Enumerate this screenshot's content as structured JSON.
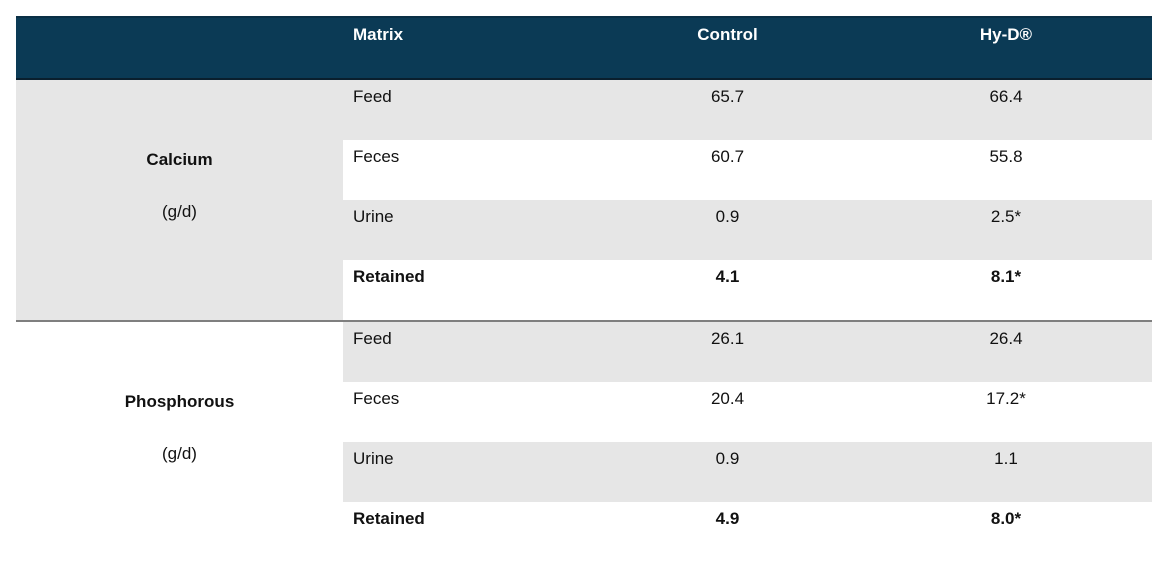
{
  "header": {
    "corner": "",
    "matrix": "Matrix",
    "control": "Control",
    "hyd": "Hy-D®"
  },
  "groups": [
    {
      "name": "Calcium",
      "unit": "(g/d)",
      "rows": [
        {
          "matrix": "Feed",
          "control": "65.7",
          "hyd": "66.4"
        },
        {
          "matrix": "Feces",
          "control": "60.7",
          "hyd": "55.8"
        },
        {
          "matrix": "Urine",
          "control": "0.9",
          "hyd": "2.5*"
        },
        {
          "matrix": "Retained",
          "control": "4.1",
          "hyd": "8.1*"
        }
      ]
    },
    {
      "name": "Phosphorous",
      "unit": "(g/d)",
      "rows": [
        {
          "matrix": "Feed",
          "control": "26.1",
          "hyd": "26.4"
        },
        {
          "matrix": "Feces",
          "control": "20.4",
          "hyd": "17.2*"
        },
        {
          "matrix": "Urine",
          "control": "0.9",
          "hyd": "1.1"
        },
        {
          "matrix": "Retained",
          "control": "4.9",
          "hyd": "8.0*"
        }
      ]
    }
  ],
  "colors": {
    "header_bg": "#0b3a55",
    "header_text": "#ffffff",
    "shade": "#e6e6e6"
  }
}
